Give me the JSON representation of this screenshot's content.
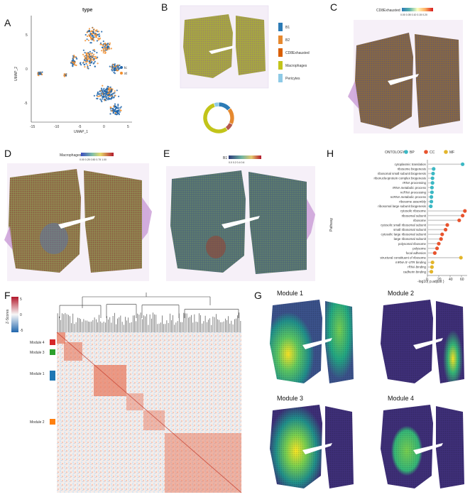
{
  "letters": {
    "A": "A",
    "B": "B",
    "C": "C",
    "D": "D",
    "E": "E",
    "F": "F",
    "G": "G",
    "H": "H"
  },
  "panelA": {
    "title": "type",
    "xlabel": "UMAP_1",
    "ylabel": "UMAP_2",
    "legend": [
      {
        "label": "tc",
        "color": "#2166ac"
      },
      {
        "label": "st",
        "color": "#f28e2b"
      }
    ],
    "xticks": [
      "-15",
      "-10",
      "-5",
      "0",
      "5"
    ],
    "yticks": [
      "5",
      "0",
      "-5"
    ]
  },
  "panelB": {
    "legend": [
      {
        "label": "B1",
        "color": "#2c7bb6"
      },
      {
        "label": "B2",
        "color": "#e6892f"
      },
      {
        "label": "CD8Exhausted",
        "color": "#d95f02"
      },
      {
        "label": "Macrophages",
        "color": "#c2c41a"
      },
      {
        "label": "Pericytes",
        "color": "#8ecae6"
      }
    ],
    "donut": [
      {
        "label": "B1",
        "value": 14,
        "color": "#2c7bb6"
      },
      {
        "label": "B2",
        "value": 18,
        "color": "#e6892f"
      },
      {
        "label": "CD8Exhausted",
        "value": 8,
        "color": "#b5584b"
      },
      {
        "label": "Macrophages",
        "value": 55,
        "color": "#c2c41a"
      },
      {
        "label": "Pericytes",
        "value": 5,
        "color": "#8ecae6"
      }
    ]
  },
  "panelC": {
    "colorbar_label": "CD8Exhausted",
    "ticks": "0.00 0.05 0.10 0.15 0.20"
  },
  "panelD": {
    "colorbar_label": "Macrophages",
    "ticks": "0.00 0.25 0.50 0.75 1.00"
  },
  "panelE": {
    "colorbar_label": "B1",
    "ticks": "0.0  0.2  0.4  0.6"
  },
  "panelF": {
    "zlabel": "Z-Scores",
    "zticks": [
      "5",
      "0",
      "-5"
    ],
    "modules": [
      {
        "label": "Module 4",
        "color": "#d62728"
      },
      {
        "label": "Module 3",
        "color": "#2ca02c"
      },
      {
        "label": "Module 1",
        "color": "#1f77b4"
      },
      {
        "label": "Module 2",
        "color": "#ff7f0e"
      }
    ]
  },
  "panelG": {
    "titles": [
      "Module 1",
      "Module 2",
      "Module 3",
      "Module 4"
    ]
  },
  "chart_data": {
    "type": "scatter",
    "title": "",
    "legend_title": "ONTOLOGY",
    "legend": [
      {
        "label": "BP",
        "color": "#3bb8c4"
      },
      {
        "label": "CC",
        "color": "#e8532d"
      },
      {
        "label": "MF",
        "color": "#e3b52a"
      }
    ],
    "xlabel": "-log10( p.adjust )",
    "ylabel": "Pathway",
    "xlim": [
      0,
      70
    ],
    "xticks": [
      "0",
      "20",
      "40",
      "60"
    ],
    "series": [
      {
        "name": "cytoplasmic translation",
        "ontology": "BP",
        "x": 62
      },
      {
        "name": "ribosome biogenesis",
        "ontology": "BP",
        "x": 11
      },
      {
        "name": "ribosomal small subunit biogenesis",
        "ontology": "BP",
        "x": 10
      },
      {
        "name": "ribonucleoprotein complex biogenesis",
        "ontology": "BP",
        "x": 9
      },
      {
        "name": "rRNA processing",
        "ontology": "BP",
        "x": 9
      },
      {
        "name": "rRNA metabolic process",
        "ontology": "BP",
        "x": 8
      },
      {
        "name": "ncRNA processing",
        "ontology": "BP",
        "x": 8
      },
      {
        "name": "ncRNA metabolic process",
        "ontology": "BP",
        "x": 7
      },
      {
        "name": "ribosome assembly",
        "ontology": "BP",
        "x": 7
      },
      {
        "name": "ribosomal large subunit biogenesis",
        "ontology": "BP",
        "x": 6
      },
      {
        "name": "cytosolic ribosome",
        "ontology": "CC",
        "x": 66
      },
      {
        "name": "ribosomal subunit",
        "ontology": "CC",
        "x": 62
      },
      {
        "name": "ribosome",
        "ontology": "CC",
        "x": 56
      },
      {
        "name": "cytosolic small ribosomal subunit",
        "ontology": "CC",
        "x": 35
      },
      {
        "name": "small ribosomal subunit",
        "ontology": "CC",
        "x": 32
      },
      {
        "name": "cytosolic large ribosomal subunit",
        "ontology": "CC",
        "x": 26
      },
      {
        "name": "large ribosomal subunit",
        "ontology": "CC",
        "x": 24
      },
      {
        "name": "polysomal ribosome",
        "ontology": "CC",
        "x": 20
      },
      {
        "name": "polysome",
        "ontology": "CC",
        "x": 17
      },
      {
        "name": "focal adhesion",
        "ontology": "CC",
        "x": 13
      },
      {
        "name": "structural constituent of ribosome",
        "ontology": "MF",
        "x": 59
      },
      {
        "name": "mRNA 5'-UTR binding",
        "ontology": "MF",
        "x": 9
      },
      {
        "name": "rRNA binding",
        "ontology": "MF",
        "x": 8
      },
      {
        "name": "cadherin binding",
        "ontology": "MF",
        "x": 7
      }
    ]
  }
}
